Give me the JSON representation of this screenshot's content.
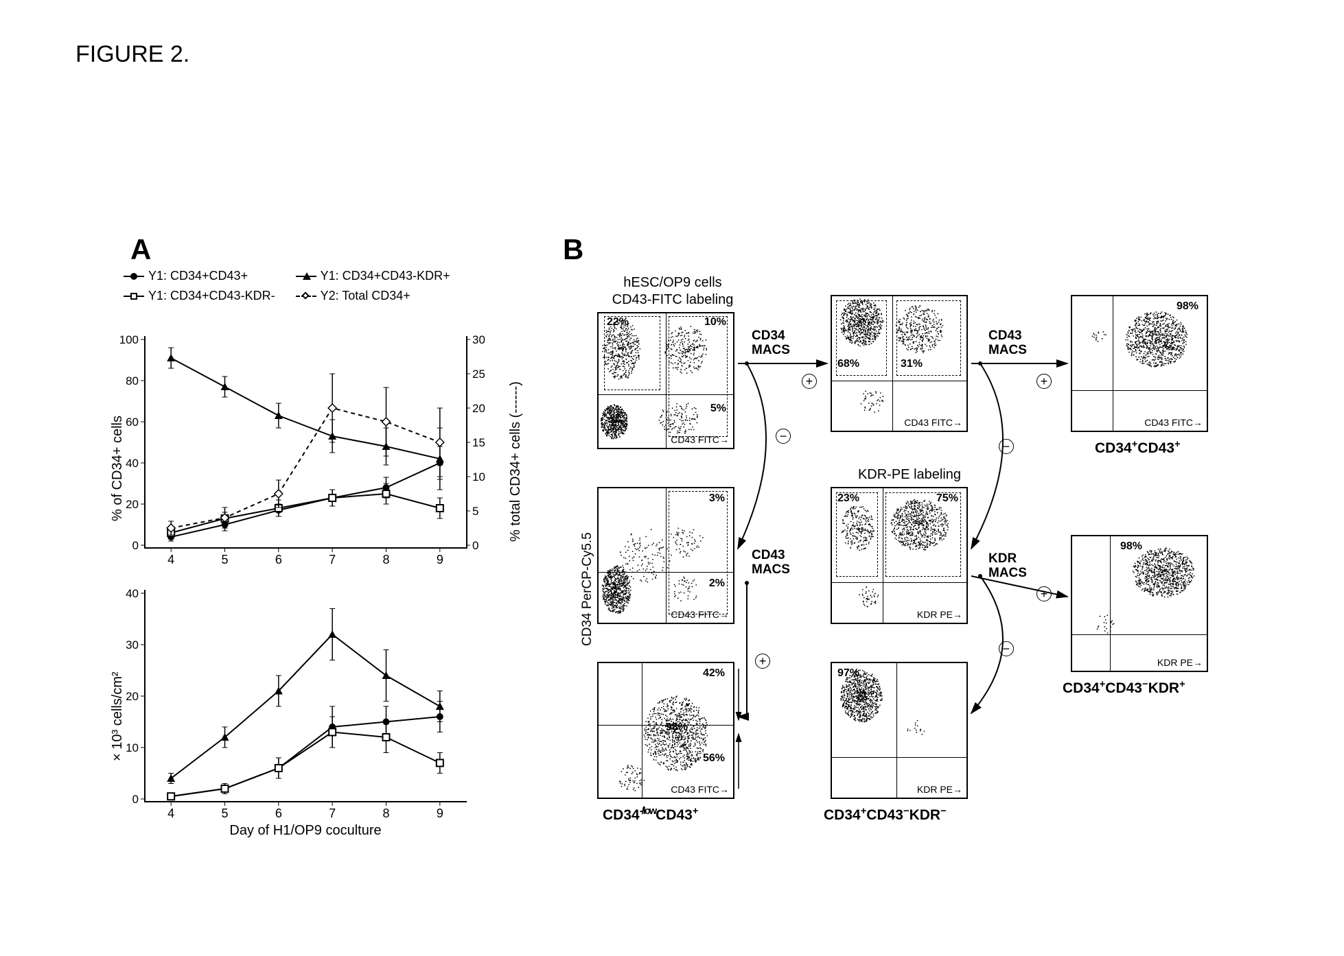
{
  "figure_title": "FIGURE 2.",
  "panel_a_label": "A",
  "panel_b_label": "B",
  "legend": {
    "s1": "Y1: CD34+CD43+",
    "s2": "Y1: CD34+CD43-KDR+",
    "s3": "Y1: CD34+CD43-KDR-",
    "s4": "Y2: Total CD34+"
  },
  "chart_a_top": {
    "type": "line",
    "y1_label": "% of CD34+ cells",
    "y2_label": "% total CD34+ cells (------)",
    "x_categories": [
      4,
      5,
      6,
      7,
      8,
      9
    ],
    "y1_lim": [
      0,
      100
    ],
    "y1_tick_step": 20,
    "y2_lim": [
      0,
      30
    ],
    "y2_tick_step": 5,
    "series": {
      "cd34_cd43_pos": {
        "marker": "circle-filled",
        "dash": "solid",
        "values": [
          4,
          10,
          17,
          23,
          28,
          40
        ],
        "err": [
          2,
          3,
          3,
          4,
          5,
          8
        ]
      },
      "cd34_cd43n_kdrp": {
        "marker": "triangle-filled",
        "dash": "solid",
        "values": [
          91,
          77,
          63,
          53,
          48,
          42
        ],
        "err": [
          5,
          5,
          6,
          8,
          9,
          15
        ]
      },
      "cd34_cd43n_kdrn": {
        "marker": "square-open",
        "dash": "solid",
        "values": [
          6,
          13,
          18,
          23,
          25,
          18
        ],
        "err": [
          3,
          3,
          4,
          4,
          5,
          5
        ]
      },
      "total_cd34": {
        "marker": "diamond-open",
        "dash": "dashed",
        "axis": "y2",
        "values": [
          2.5,
          4,
          7.5,
          20,
          18,
          15
        ],
        "err": [
          1,
          1.5,
          2,
          5,
          5,
          5
        ]
      }
    },
    "line_color": "#000000",
    "background_color": "#ffffff"
  },
  "chart_a_bottom": {
    "type": "line",
    "y_label": "× 10³ cells/cm²",
    "x_label": "Day of H1/OP9 coculture",
    "x_categories": [
      4,
      5,
      6,
      7,
      8,
      9
    ],
    "y_lim": [
      0,
      40
    ],
    "y_tick_step": 10,
    "series": {
      "cd34_cd43_pos": {
        "marker": "circle-filled",
        "values": [
          0.5,
          2,
          6,
          14,
          15,
          16
        ],
        "err": [
          0.3,
          1,
          2,
          4,
          3,
          3
        ]
      },
      "cd34_cd43n_kdrp": {
        "marker": "triangle-filled",
        "values": [
          4,
          12,
          21,
          32,
          24,
          18
        ],
        "err": [
          1,
          2,
          3,
          5,
          5,
          3
        ]
      },
      "cd34_cd43n_kdrn": {
        "marker": "square-open",
        "values": [
          0.5,
          2,
          6,
          13,
          12,
          7
        ],
        "err": [
          0.3,
          1,
          2,
          3,
          3,
          2
        ]
      }
    },
    "line_color": "#000000"
  },
  "panel_b": {
    "top_text1": "hESC/OP9 cells",
    "top_text2": "CD43-FITC labeling",
    "kdr_text": "KDR-PE labeling",
    "y_axis": "CD34 PerCP-Cy5.5",
    "macs": {
      "cd34": "CD34\nMACS",
      "cd43": "CD43\nMACS",
      "kdr": "KDR\nMACS"
    },
    "plots": {
      "p1": {
        "q_ul": "22%",
        "q_ur": "10%",
        "q_lr": "5%",
        "x_axis": "CD43 FITC→"
      },
      "p2": {
        "q_ul": "68%",
        "q_ur": "31%",
        "x_axis": "CD43 FITC→"
      },
      "p3": {
        "main": "98%",
        "x_axis": "CD43 FITC→",
        "final": "CD34⁺CD43⁺"
      },
      "p4": {
        "q_ur": "3%",
        "q_lr": "2%",
        "x_axis": "CD43 FITC→"
      },
      "p5": {
        "q_ul": "23%",
        "q_ur": "75%",
        "x_axis": "KDR PE→"
      },
      "p6": {
        "main": "98%",
        "x_axis": "KDR PE→",
        "final": "CD34⁺CD43⁻KDR⁺"
      },
      "p7": {
        "q_ur": "42%",
        "main": "98%",
        "q_lr": "56%",
        "x_axis": "CD43 FITC→",
        "final": "CD34⁻∕ˡᵒʷCD43⁺"
      },
      "p8": {
        "q_ul": "97%",
        "x_axis": "KDR PE→",
        "final": "CD34⁺CD43⁻KDR⁻"
      }
    }
  }
}
